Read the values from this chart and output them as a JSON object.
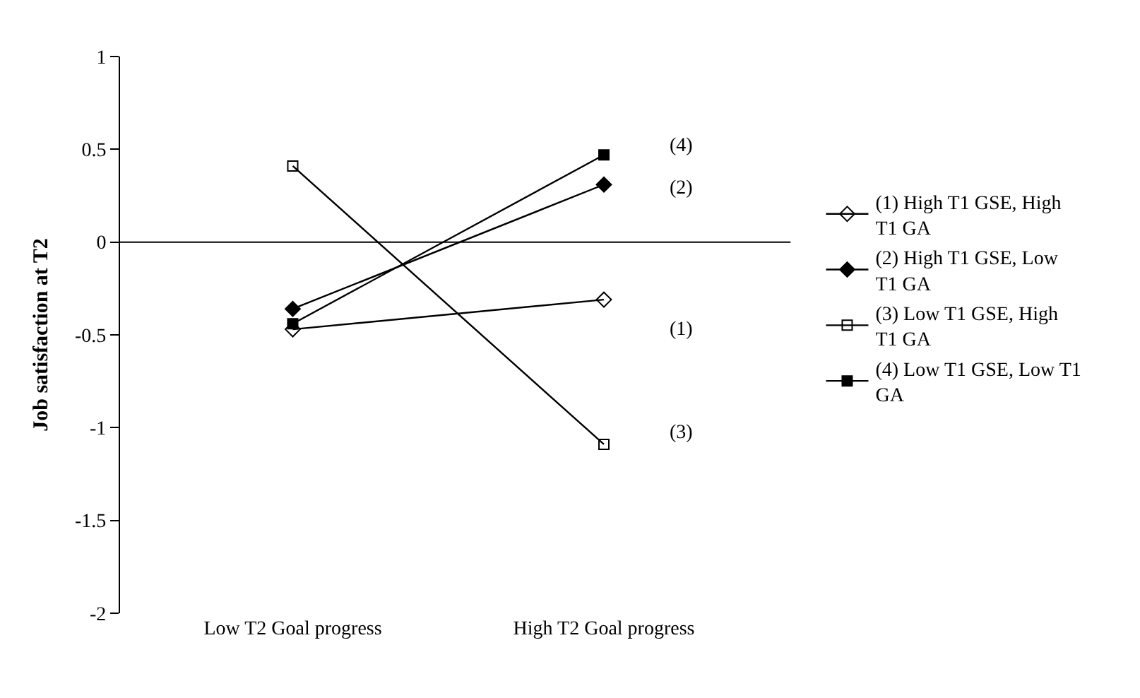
{
  "chart_data": {
    "type": "line",
    "ylabel": "Job satisfaction at T2",
    "categories": [
      "Low T2 Goal progress",
      "High T2 Goal progress"
    ],
    "series": [
      {
        "name": "(1) High T1 GSE, High T1 GA",
        "color": "#000000",
        "marker": "diamond-open",
        "values": [
          -0.47,
          -0.31
        ]
      },
      {
        "name": "(2) High T1 GSE, Low T1 GA",
        "color": "#000000",
        "marker": "diamond",
        "values": [
          -0.36,
          0.31
        ]
      },
      {
        "name": "(3) Low T1 GSE, High T1 GA",
        "color": "#000000",
        "marker": "square-open",
        "values": [
          0.41,
          -1.09
        ]
      },
      {
        "name": "(4) Low T1 GSE, Low T1 GA",
        "color": "#000000",
        "marker": "square",
        "values": [
          -0.44,
          0.47
        ]
      }
    ],
    "ylim": [
      -2,
      1
    ],
    "yticks": [
      -2,
      -1.5,
      -1,
      -0.5,
      0,
      0.5,
      1
    ],
    "legend": "right",
    "line_style": "solid",
    "ref_lines": [
      {
        "axis": "y",
        "value": 0,
        "color": "#000000"
      }
    ],
    "annotations": [
      "(4)",
      "(2)",
      "(1)",
      "(3)"
    ]
  }
}
